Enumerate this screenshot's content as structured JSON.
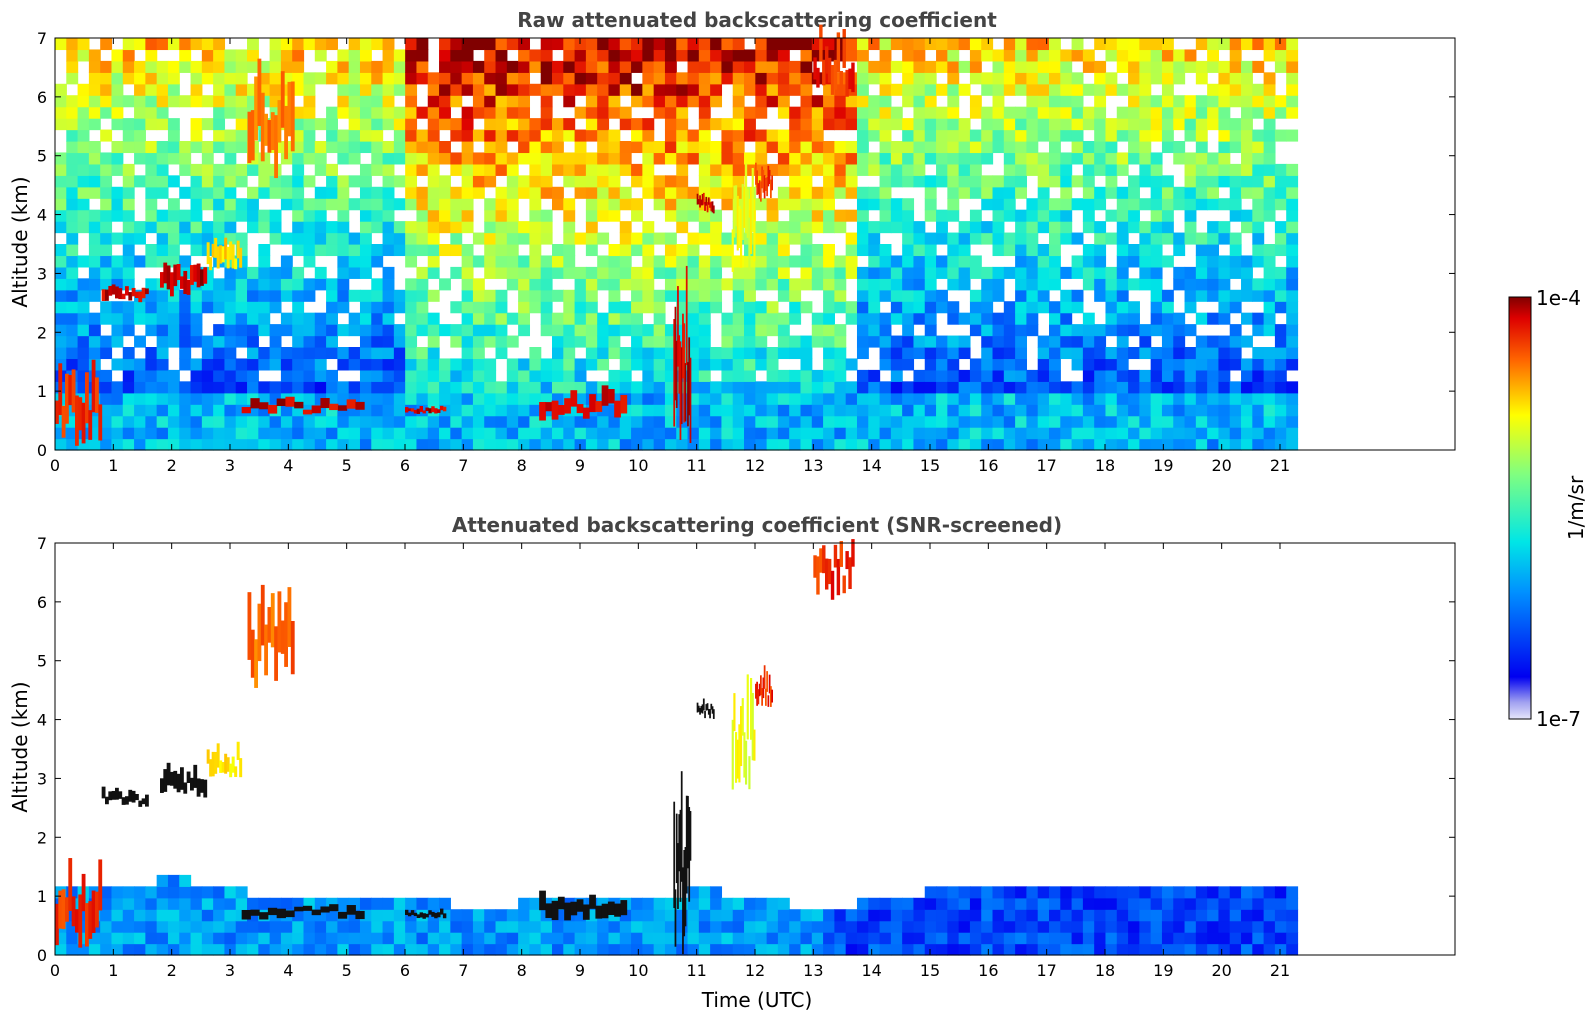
{
  "chart_data": [
    {
      "type": "heatmap",
      "title": "Raw attenuated backscattering coefficient",
      "xlabel": "",
      "ylabel": "Altitude (km)",
      "xlim": [
        0,
        24
      ],
      "ylim": [
        0,
        7
      ],
      "x_ticks": [
        "0",
        "1",
        "2",
        "3",
        "4",
        "5",
        "6",
        "7",
        "8",
        "9",
        "10",
        "11",
        "12",
        "13",
        "14",
        "15",
        "16",
        "17",
        "18",
        "19",
        "20",
        "21"
      ],
      "y_ticks": [
        "0",
        "1",
        "2",
        "3",
        "4",
        "5",
        "6",
        "7"
      ],
      "data_extent_x": [
        0,
        21.3
      ],
      "cloud_layers": [
        {
          "x": [
            0.0,
            0.8
          ],
          "altitude": [
            0.0,
            1.3
          ],
          "level": 0.95
        },
        {
          "x": [
            0.8,
            1.6
          ],
          "altitude": [
            2.5,
            2.8
          ],
          "level": 1.0
        },
        {
          "x": [
            1.8,
            2.6
          ],
          "altitude": [
            2.6,
            3.2
          ],
          "level": 1.0
        },
        {
          "x": [
            2.6,
            3.2
          ],
          "altitude": [
            3.0,
            3.6
          ],
          "level": 0.8
        },
        {
          "x": [
            3.3,
            4.1
          ],
          "altitude": [
            4.5,
            6.2
          ],
          "level": 0.9
        },
        {
          "x": [
            3.2,
            5.3
          ],
          "altitude": [
            0.6,
            0.85
          ],
          "level": 1.0
        },
        {
          "x": [
            6.0,
            6.7
          ],
          "altitude": [
            0.6,
            0.75
          ],
          "level": 1.0
        },
        {
          "x": [
            8.3,
            9.8
          ],
          "altitude": [
            0.5,
            1.0
          ],
          "level": 1.0
        },
        {
          "x": [
            10.6,
            10.9
          ],
          "altitude": [
            0.0,
            2.7
          ],
          "level": 1.0
        },
        {
          "x": [
            11.0,
            11.3
          ],
          "altitude": [
            4.0,
            4.3
          ],
          "level": 1.0
        },
        {
          "x": [
            11.6,
            12.0
          ],
          "altitude": [
            2.8,
            4.5
          ],
          "level": 0.75
        },
        {
          "x": [
            12.0,
            12.3
          ],
          "altitude": [
            4.2,
            4.8
          ],
          "level": 0.95
        },
        {
          "x": [
            13.0,
            13.7
          ],
          "altitude": [
            6.0,
            7.0
          ],
          "level": 0.95
        }
      ]
    },
    {
      "type": "heatmap",
      "title": "Attenuated backscattering coefficient (SNR-screened)",
      "xlabel": "Time (UTC)",
      "ylabel": "Altitude (km)",
      "xlim": [
        0,
        24
      ],
      "ylim": [
        0,
        7
      ],
      "x_ticks": [
        "0",
        "1",
        "2",
        "3",
        "4",
        "5",
        "6",
        "7",
        "8",
        "9",
        "10",
        "11",
        "12",
        "13",
        "14",
        "15",
        "16",
        "17",
        "18",
        "19",
        "20",
        "21"
      ],
      "y_ticks": [
        "0",
        "1",
        "2",
        "3",
        "4",
        "5",
        "6",
        "7"
      ],
      "data_extent_x": [
        0,
        21.3
      ],
      "boundary_layer_top_km": [
        [
          0,
          1.0
        ],
        [
          1,
          1.1
        ],
        [
          2,
          1.2
        ],
        [
          3,
          1.0
        ],
        [
          4,
          0.8
        ],
        [
          5,
          0.8
        ],
        [
          6,
          0.9
        ],
        [
          7,
          0.7
        ],
        [
          8,
          0.8
        ],
        [
          9,
          0.9
        ],
        [
          10,
          0.9
        ],
        [
          11,
          1.0
        ],
        [
          12,
          0.9
        ],
        [
          13,
          0.6
        ],
        [
          14,
          0.9
        ],
        [
          15,
          1.0
        ],
        [
          16,
          1.0
        ],
        [
          17,
          1.0
        ],
        [
          18,
          1.0
        ],
        [
          19,
          1.0
        ],
        [
          20,
          1.0
        ],
        [
          21,
          1.0
        ]
      ]
    }
  ],
  "colorbar": {
    "label": "1/m/sr",
    "max_label": "1e-4",
    "min_label": "1e-7",
    "colormap": "jet"
  }
}
